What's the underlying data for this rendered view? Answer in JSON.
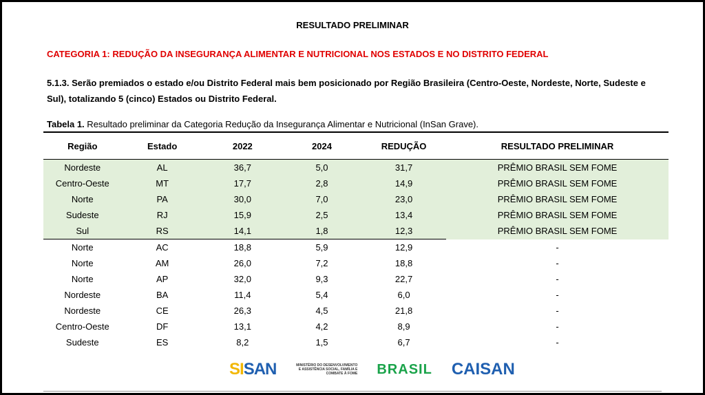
{
  "title": "RESULTADO PRELIMINAR",
  "category": "CATEGORIA 1: REDUÇÃO DA INSEGURANÇA ALIMENTAR E NUTRICIONAL NOS ESTADOS E NO DISTRITO FEDERAL",
  "paragraph": "5.1.3. Serão premiados o estado e/ou Distrito Federal mais bem posicionado por Região Brasileira (Centro-Oeste, Nordeste, Norte, Sudeste e Sul), totalizando 5 (cinco) Estados  ou Distrito Federal.",
  "caption_bold": "Tabela 1.",
  "caption_text": " Resultado preliminar da Categoria Redução da Insegurança Alimentar e Nutricional (InSan Grave).",
  "headers": [
    "Região",
    "Estado",
    "2022",
    "2024",
    "REDUÇÃO",
    "RESULTADO PRELIMINAR"
  ],
  "rows": [
    [
      "Nordeste",
      "AL",
      "36,7",
      "5,0",
      "31,7",
      "PRÊMIO BRASIL SEM FOME"
    ],
    [
      "Centro-Oeste",
      "MT",
      "17,7",
      "2,8",
      "14,9",
      "PRÊMIO BRASIL SEM FOME"
    ],
    [
      "Norte",
      "PA",
      "30,0",
      "7,0",
      "23,0",
      "PRÊMIO BRASIL SEM FOME"
    ],
    [
      "Sudeste",
      "RJ",
      "15,9",
      "2,5",
      "13,4",
      "PRÊMIO BRASIL SEM FOME"
    ],
    [
      "Sul",
      "RS",
      "14,1",
      "1,8",
      "12,3",
      "PRÊMIO BRASIL SEM FOME"
    ],
    [
      "Norte",
      "AC",
      "18,8",
      "5,9",
      "12,9",
      "-"
    ],
    [
      "Norte",
      "AM",
      "26,0",
      "7,2",
      "18,8",
      "-"
    ],
    [
      "Norte",
      "AP",
      "32,0",
      "9,3",
      "22,7",
      "-"
    ],
    [
      "Nordeste",
      "BA",
      "11,4",
      "5,4",
      "6,0",
      "-"
    ],
    [
      "Nordeste",
      "CE",
      "26,3",
      "4,5",
      "21,8",
      "-"
    ],
    [
      "Centro-Oeste",
      "DF",
      "13,1",
      "4,2",
      "8,9",
      "-"
    ],
    [
      "Sudeste",
      "ES",
      "8,2",
      "1,5",
      "6,7",
      "-"
    ]
  ],
  "winner_count": 5,
  "highlight_color": "#e2efda",
  "logos": {
    "sisan_a": "SI",
    "sisan_b": "SAN",
    "mds": "MINISTÉRIO DO DESENVOLVIMENTO E ASSISTÊNCIA SOCIAL, FAMÍLIA E COMBATE À FOME",
    "brasil": "BRASIL",
    "caisan": "CAISAN"
  }
}
